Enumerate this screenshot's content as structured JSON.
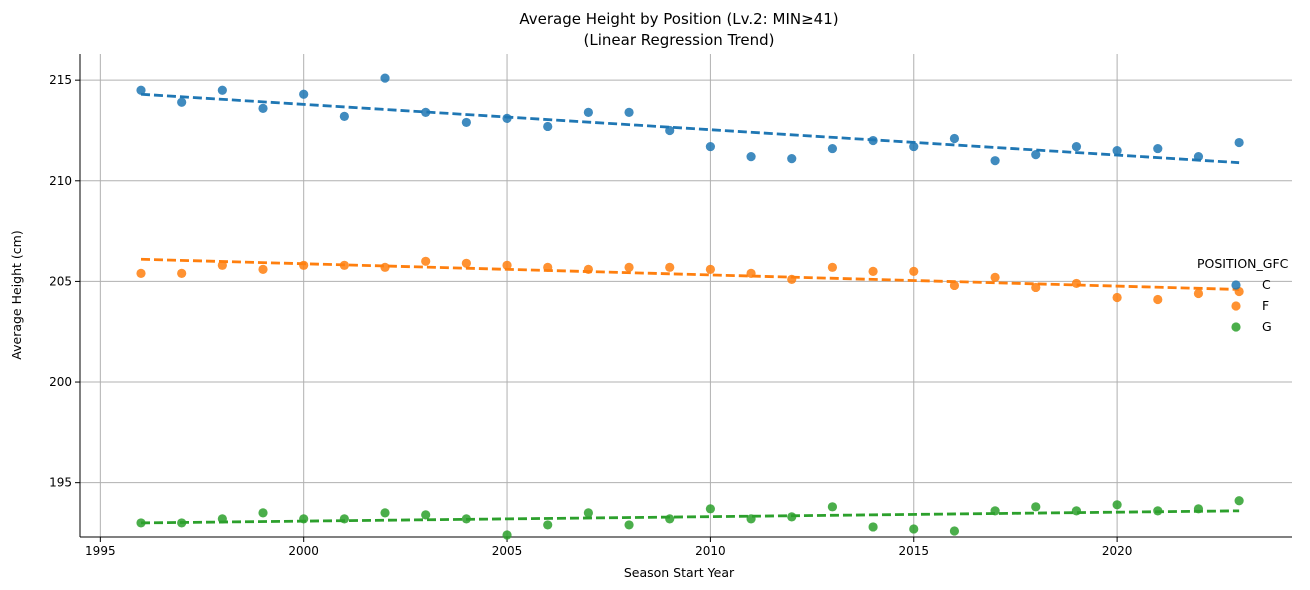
{
  "chart_data": {
    "type": "scatter",
    "title": "Average Height by Position (Lv.2: MIN≥41)",
    "subtitle": "(Linear Regression Trend)",
    "xlabel": "Season Start Year",
    "ylabel": "Average Height (cm)",
    "xlim": [
      1994.5,
      2024.3
    ],
    "ylim": [
      192.3,
      216.3
    ],
    "x_ticks": [
      "1995",
      "2000",
      "2005",
      "2010",
      "2015",
      "2020"
    ],
    "y_ticks": [
      "195",
      "200",
      "205",
      "210",
      "215"
    ],
    "grid": true,
    "legend": {
      "title": "POSITION_GFC",
      "placement": "right"
    },
    "x": [
      1996,
      1997,
      1998,
      1999,
      2000,
      2001,
      2002,
      2003,
      2004,
      2005,
      2006,
      2007,
      2008,
      2009,
      2010,
      2011,
      2012,
      2013,
      2014,
      2015,
      2016,
      2017,
      2018,
      2019,
      2020,
      2021,
      2022,
      2023
    ],
    "series": [
      {
        "name": "C",
        "color": "#1f77b4",
        "values": [
          214.5,
          213.9,
          214.5,
          213.6,
          214.3,
          213.2,
          215.1,
          213.4,
          212.9,
          213.1,
          212.7,
          213.4,
          213.4,
          212.5,
          211.7,
          211.2,
          211.1,
          211.6,
          212.0,
          211.7,
          212.1,
          211.0,
          211.3,
          211.7,
          211.5,
          211.6,
          211.2,
          211.9
        ],
        "trend": [
          214.3,
          210.9
        ]
      },
      {
        "name": "F",
        "color": "#ff7f0e",
        "values": [
          205.4,
          205.4,
          205.8,
          205.6,
          205.8,
          205.8,
          205.7,
          206.0,
          205.9,
          205.8,
          205.7,
          205.6,
          205.7,
          205.7,
          205.6,
          205.4,
          205.1,
          205.7,
          205.5,
          205.5,
          204.8,
          205.2,
          204.7,
          204.9,
          204.2,
          204.1,
          204.4,
          204.5
        ],
        "trend": [
          206.1,
          204.6
        ]
      },
      {
        "name": "G",
        "color": "#2ca02c",
        "values": [
          193.0,
          193.0,
          193.2,
          193.5,
          193.2,
          193.2,
          193.5,
          193.4,
          193.2,
          192.4,
          192.9,
          193.5,
          192.9,
          193.2,
          193.7,
          193.2,
          193.3,
          193.8,
          192.8,
          192.7,
          192.6,
          193.6,
          193.8,
          193.6,
          193.9,
          193.6,
          193.7,
          194.1
        ],
        "trend": [
          193.0,
          193.6
        ]
      }
    ]
  }
}
